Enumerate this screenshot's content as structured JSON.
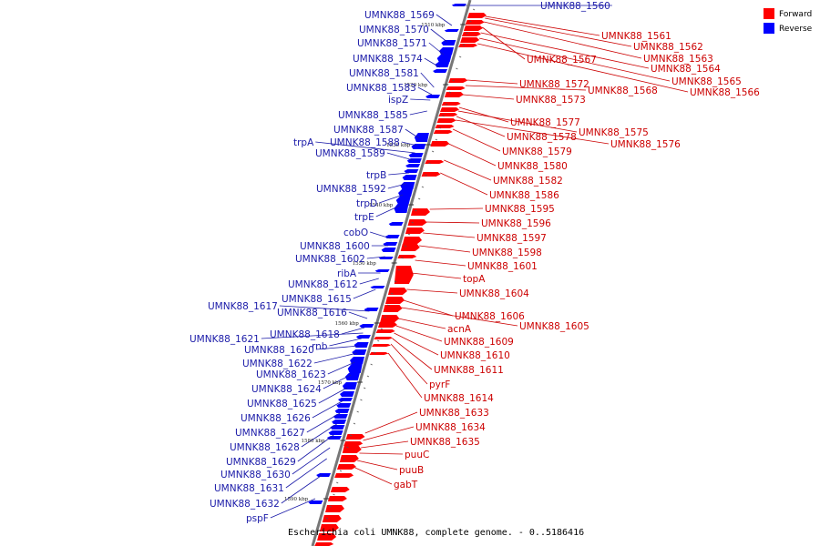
{
  "caption": "Escherichia coli UMNK88, complete genome. - 0..5186416",
  "legend": {
    "forward": {
      "label": "Forward",
      "color": "#ff0000"
    },
    "reverse": {
      "label": "Reverse",
      "color": "#0000ff"
    }
  },
  "colors": {
    "forward_label": "#cc0000",
    "reverse_label": "#1a1aa8",
    "backbone": "#777777"
  },
  "position_ticks": [
    "1510 kbp",
    "1520 kbp",
    "1530 kbp",
    "1540 kbp",
    "1550 kbp",
    "1560 kbp",
    "1570 kbp",
    "1580 kbp",
    "1590 kbp"
  ],
  "forward_labels": [
    "UMNK88_1561",
    "UMNK88_1562",
    "UMNK88_1563",
    "UMNK88_1567",
    "UMNK88_1564",
    "UMNK88_1565",
    "UMNK88_1566",
    "UMNK88_1572",
    "UMNK88_1568",
    "UMNK88_1573",
    "UMNK88_1577",
    "UMNK88_1575",
    "UMNK88_1578",
    "UMNK88_1576",
    "UMNK88_1579",
    "UMNK88_1580",
    "UMNK88_1582",
    "UMNK88_1586",
    "UMNK88_1595",
    "UMNK88_1596",
    "UMNK88_1597",
    "UMNK88_1598",
    "UMNK88_1601",
    "topA",
    "UMNK88_1604",
    "UMNK88_1606",
    "UMNK88_1605",
    "acnA",
    "UMNK88_1609",
    "UMNK88_1610",
    "UMNK88_1611",
    "pyrF",
    "UMNK88_1614",
    "UMNK88_1633",
    "UMNK88_1634",
    "UMNK88_1635",
    "puuC",
    "puuB",
    "gabT"
  ],
  "reverse_labels": [
    "UMNK88_1560",
    "UMNK88_1569",
    "UMNK88_1570",
    "UMNK88_1571",
    "UMNK88_1574",
    "UMNK88_1581",
    "UMNK88_1583",
    "ispZ",
    "UMNK88_1585",
    "UMNK88_1587",
    "trpA",
    "UMNK88_1588",
    "UMNK88_1589",
    "trpB",
    "UMNK88_1592",
    "trpD",
    "trpE",
    "cobO",
    "UMNK88_1600",
    "UMNK88_1602",
    "ribA",
    "UMNK88_1612",
    "UMNK88_1615",
    "UMNK88_1617",
    "UMNK88_1616",
    "UMNK88_1618",
    "UMNK88_1621",
    "rnb",
    "UMNK88_1620",
    "UMNK88_1622",
    "UMNK88_1623",
    "UMNK88_1624",
    "UMNK88_1625",
    "UMNK88_1626",
    "UMNK88_1627",
    "UMNK88_1628",
    "UMNK88_1629",
    "UMNK88_1630",
    "UMNK88_1631",
    "UMNK88_1632",
    "pspF"
  ]
}
